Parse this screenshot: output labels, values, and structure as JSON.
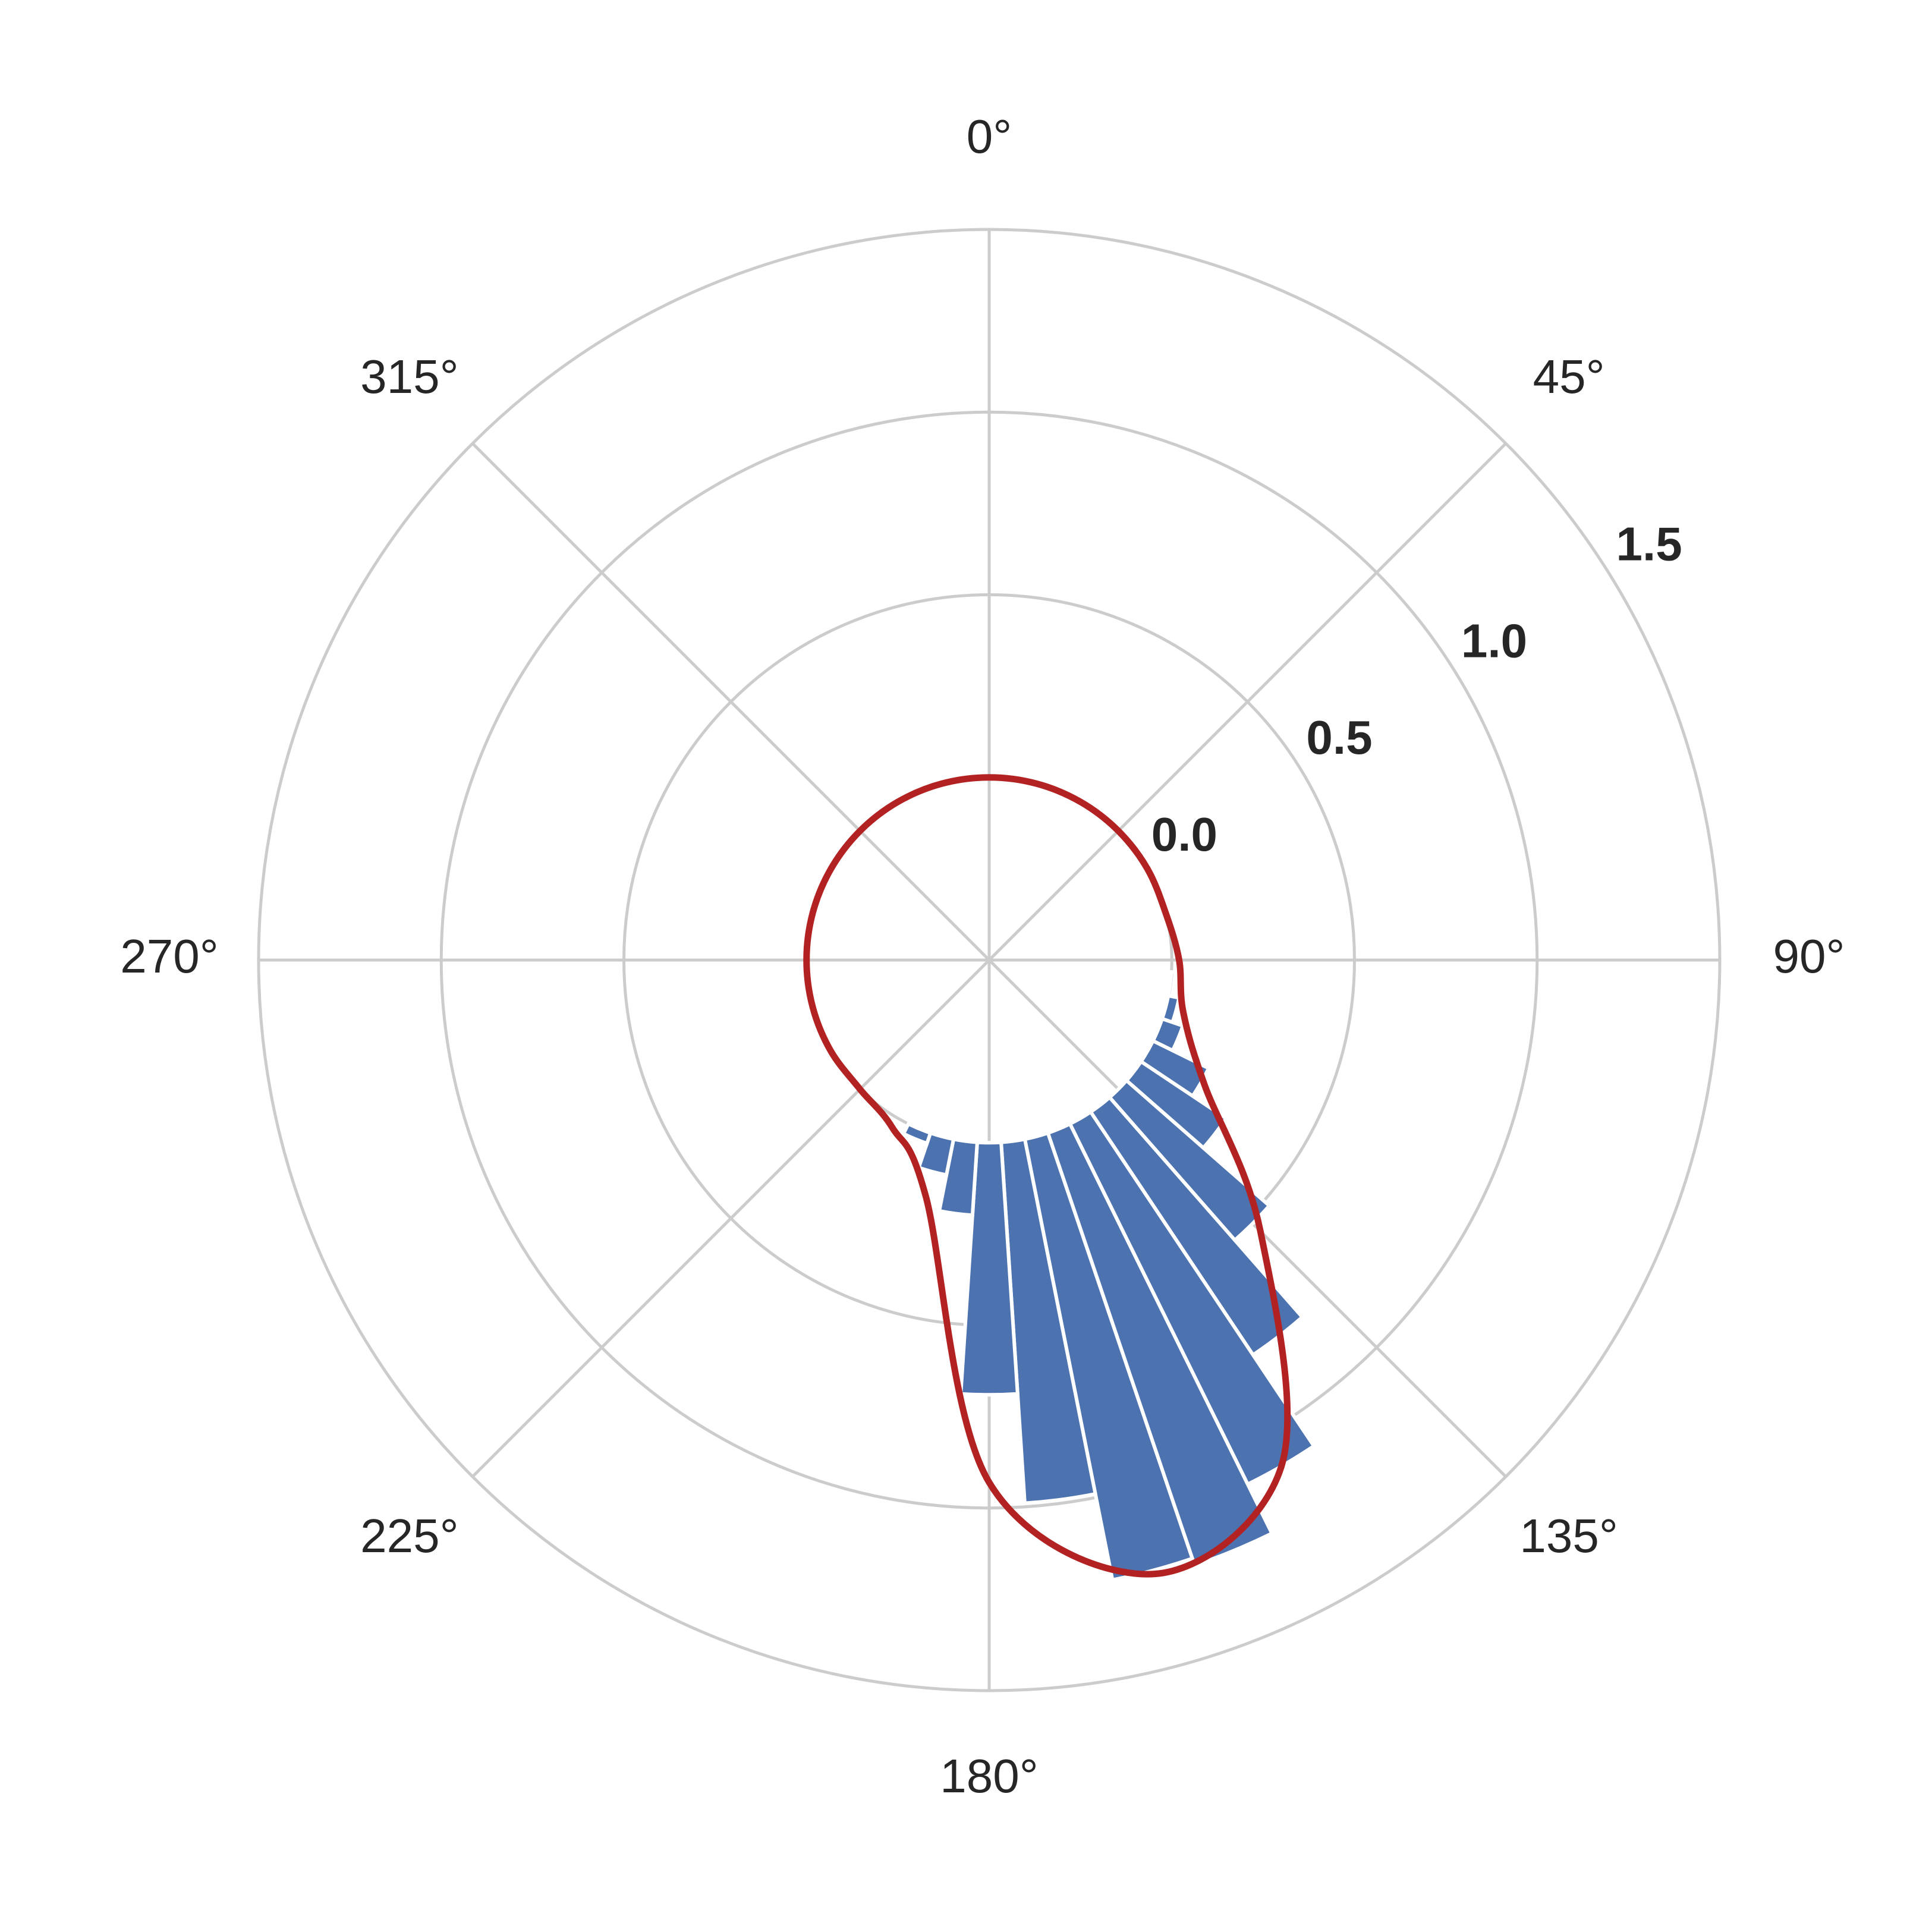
{
  "chart_data": {
    "type": "polar",
    "theta_zero": "N",
    "theta_direction": "clockwise",
    "rlim": [
      -0.5,
      1.5
    ],
    "rticks": [
      {
        "value": 0,
        "label": "0.0"
      },
      0.5,
      {
        "value": 1,
        "label": "1.0"
      },
      1.5
    ],
    "thetaticks": [
      {
        "value": 0,
        "label": "0°"
      },
      {
        "value": 45,
        "label": "45°"
      },
      {
        "value": 90,
        "label": "90°"
      },
      {
        "value": 135,
        "label": "135°"
      },
      {
        "value": 180,
        "label": "180°"
      },
      {
        "value": 225,
        "label": "225°"
      },
      {
        "value": 270,
        "label": "270°"
      },
      {
        "value": 315,
        "label": "315°"
      }
    ],
    "grid": true,
    "bars": {
      "color": "#4c72b0",
      "theta": [
        97.5,
        105,
        112.5,
        120,
        127.5,
        135,
        142.5,
        150,
        157.5,
        165,
        172.5,
        180,
        187.5,
        195,
        202.5
      ],
      "values": [
        0.01,
        0.03,
        0.06,
        0.17,
        0.28,
        0.52,
        0.8,
        1.1,
        1.25,
        1.23,
        0.99,
        0.69,
        0.2,
        0.1,
        0.03
      ]
    },
    "line": {
      "color": "#b22222",
      "theta": [
        0,
        15,
        30,
        45,
        60,
        75,
        90,
        105,
        120,
        135,
        150,
        165,
        180,
        195,
        210,
        225,
        240,
        255,
        270,
        285,
        300,
        315,
        330,
        345
      ],
      "values": [
        0,
        0,
        0,
        0,
        0,
        0,
        0.02,
        0.05,
        0.18,
        0.55,
        1.1,
        1.24,
        0.93,
        0.17,
        0.03,
        0,
        0,
        0,
        0,
        0,
        0,
        0,
        0,
        0
      ]
    }
  }
}
